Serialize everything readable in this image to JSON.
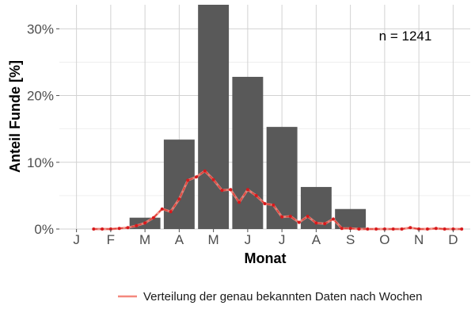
{
  "chart_data": {
    "type": "bar",
    "xlabel": "Monat",
    "ylabel": "Anteil Funde [%]",
    "categories": [
      "J",
      "F",
      "M",
      "A",
      "M",
      "J",
      "J",
      "A",
      "S",
      "O",
      "N",
      "D"
    ],
    "values": [
      0.0,
      0.1,
      1.7,
      13.4,
      33.6,
      22.8,
      15.3,
      6.3,
      3.0,
      0.0,
      0.0,
      0.0
    ],
    "ylim": [
      0,
      33.6
    ],
    "yticks": [
      0,
      10,
      20,
      30
    ],
    "ytick_labels": [
      "0%",
      "10%",
      "20%",
      "30%"
    ],
    "annotation": "n = 1241",
    "grid": true,
    "bar_color": "#595959",
    "series": [
      {
        "name": "Verteilung der genau bekannten Daten nach Wochen",
        "type": "line",
        "color": "#e0423a",
        "x": [
          1.5,
          1.75,
          2,
          2.25,
          2.5,
          2.75,
          3,
          3.25,
          3.5,
          3.75,
          4,
          4.25,
          4.5,
          4.75,
          5,
          5.25,
          5.5,
          5.75,
          6,
          6.25,
          6.5,
          6.75,
          7,
          7.25,
          7.5,
          7.75,
          8,
          8.25,
          8.5,
          8.75,
          9,
          9.25,
          9.5,
          9.75,
          10,
          10.25,
          10.5,
          10.75,
          11,
          11.25,
          11.5,
          11.75,
          12,
          12.25
        ],
        "values": [
          0,
          0,
          0,
          0.1,
          0.2,
          0.5,
          0.9,
          1.7,
          3.0,
          2.6,
          4.5,
          7.3,
          7.8,
          8.7,
          7.4,
          5.8,
          5.9,
          4.0,
          5.9,
          5.0,
          3.8,
          3.6,
          1.8,
          1.9,
          1.0,
          1.9,
          0.9,
          0.8,
          1.5,
          0.1,
          0.1,
          0,
          0,
          0,
          0,
          0,
          0,
          0.2,
          0,
          0,
          0.1,
          0,
          0,
          0
        ]
      }
    ],
    "legend": {
      "position": "bottom",
      "label": "Verteilung der genau bekannten Daten nach Wochen"
    }
  }
}
